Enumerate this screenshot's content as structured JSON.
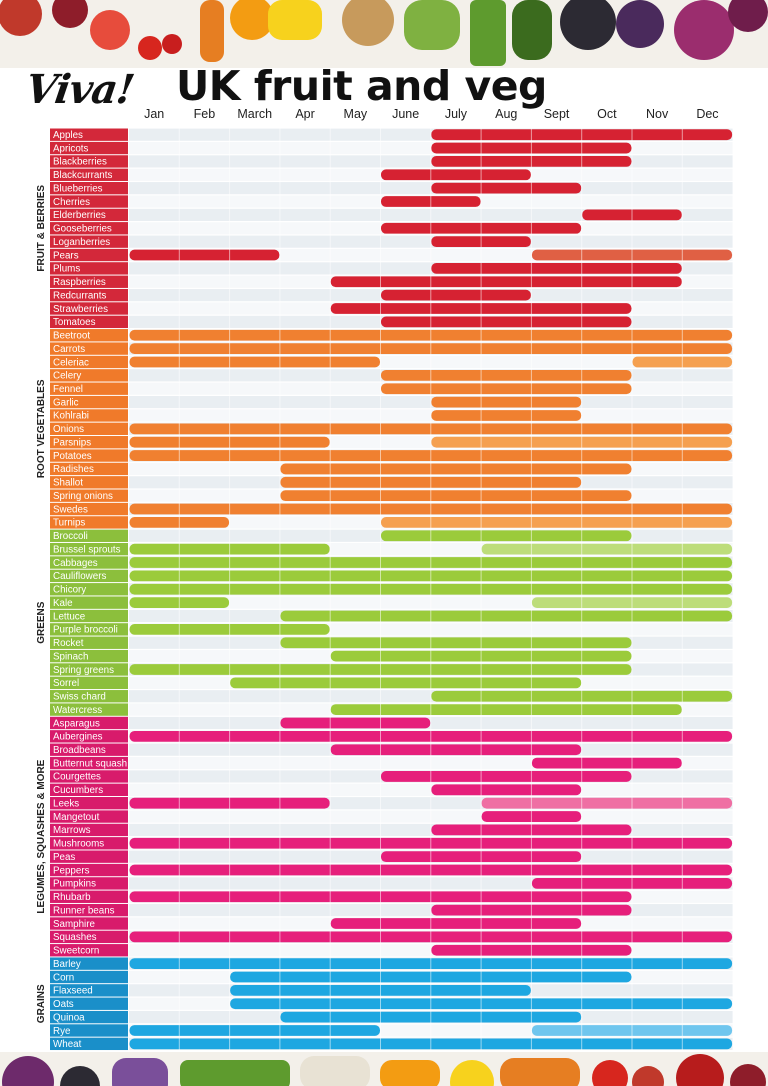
{
  "brand": {
    "logo_text": "Viva!"
  },
  "page": {
    "title": "UK fruit and veg"
  },
  "icons": {
    "top_border": "vegetable-border-image",
    "bottom_border": "vegetable-border-image"
  },
  "colors": {
    "fruit_label": "#d3283a",
    "fruit_bar": "#d62232",
    "fruit_bar_light": "#e06044",
    "root_label": "#f07a2a",
    "root_bar": "#f08030",
    "root_bar_light": "#f5a050",
    "greens_label": "#8cbf3c",
    "greens_bar": "#9bcb3b",
    "greens_bar_light": "#bddd7a",
    "legumes_label": "#d81b6b",
    "legumes_bar": "#e61f7b",
    "legumes_bar_light": "#ef6fa3",
    "grains_label": "#1a8fc9",
    "grains_bar": "#1ea7e1",
    "grains_bar_light": "#6fc6ee",
    "background_stripe": "#e9eef2"
  },
  "chart_data": {
    "type": "table",
    "title": "UK fruit and veg",
    "months": [
      "Jan",
      "Feb",
      "March",
      "Apr",
      "May",
      "June",
      "July",
      "Aug",
      "Sept",
      "Oct",
      "Nov",
      "Dec"
    ],
    "legend": "none",
    "groups": [
      {
        "name": "FRUIT & BERRIES",
        "color_key": "fruit",
        "items": [
          {
            "name": "Apples",
            "months": [
              7,
              8,
              9,
              10,
              11,
              12
            ]
          },
          {
            "name": "Apricots",
            "months": [
              7,
              8,
              9,
              10
            ]
          },
          {
            "name": "Blackberries",
            "months": [
              7,
              8,
              9,
              10
            ]
          },
          {
            "name": "Blackcurrants",
            "months": [
              6,
              7,
              8
            ]
          },
          {
            "name": "Blueberries",
            "months": [
              7,
              8,
              9
            ]
          },
          {
            "name": "Cherries",
            "months": [
              6,
              7
            ]
          },
          {
            "name": "Elderberries",
            "months": [
              10,
              11
            ]
          },
          {
            "name": "Gooseberries",
            "months": [
              6,
              7,
              8,
              9
            ]
          },
          {
            "name": "Loganberries",
            "months": [
              7,
              8
            ]
          },
          {
            "name": "Pears",
            "months": [
              1,
              2,
              3,
              9,
              10,
              11,
              12
            ]
          },
          {
            "name": "Plums",
            "months": [
              7,
              8,
              9,
              10,
              11
            ]
          },
          {
            "name": "Raspberries",
            "months": [
              5,
              6,
              7,
              8,
              9,
              10,
              11
            ]
          },
          {
            "name": "Redcurrants",
            "months": [
              6,
              7,
              8
            ]
          },
          {
            "name": "Strawberries",
            "months": [
              5,
              6,
              7,
              8,
              9,
              10
            ]
          },
          {
            "name": "Tomatoes",
            "months": [
              6,
              7,
              8,
              9,
              10
            ]
          }
        ]
      },
      {
        "name": "ROOT VEGETABLES",
        "color_key": "root",
        "items": [
          {
            "name": "Beetroot",
            "months": [
              1,
              2,
              3,
              4,
              5,
              6,
              7,
              8,
              9,
              10,
              11,
              12
            ]
          },
          {
            "name": "Carrots",
            "months": [
              1,
              2,
              3,
              4,
              5,
              6,
              7,
              8,
              9,
              10,
              11,
              12
            ]
          },
          {
            "name": "Celeriac",
            "months": [
              1,
              2,
              3,
              4,
              5,
              11,
              12
            ]
          },
          {
            "name": "Celery",
            "months": [
              6,
              7,
              8,
              9,
              10
            ]
          },
          {
            "name": "Fennel",
            "months": [
              6,
              7,
              8,
              9,
              10
            ]
          },
          {
            "name": "Garlic",
            "months": [
              7,
              8,
              9
            ]
          },
          {
            "name": "Kohlrabi",
            "months": [
              7,
              8,
              9
            ]
          },
          {
            "name": "Onions",
            "months": [
              1,
              2,
              3,
              4,
              5,
              6,
              7,
              8,
              9,
              10,
              11,
              12
            ]
          },
          {
            "name": "Parsnips",
            "months": [
              1,
              2,
              3,
              4,
              7,
              8,
              9,
              10,
              11,
              12
            ]
          },
          {
            "name": "Potatoes",
            "months": [
              1,
              2,
              3,
              4,
              5,
              6,
              7,
              8,
              9,
              10,
              11,
              12
            ]
          },
          {
            "name": "Radishes",
            "months": [
              4,
              5,
              6,
              7,
              8,
              9,
              10
            ]
          },
          {
            "name": "Shallot",
            "months": [
              4,
              5,
              6,
              7,
              8,
              9
            ]
          },
          {
            "name": "Spring onions",
            "months": [
              4,
              5,
              6,
              7,
              8,
              9,
              10
            ]
          },
          {
            "name": "Swedes",
            "months": [
              1,
              2,
              3,
              4,
              5,
              6,
              7,
              8,
              9,
              10,
              11,
              12
            ]
          },
          {
            "name": "Turnips",
            "months": [
              1,
              2,
              6,
              7,
              8,
              9,
              10,
              11,
              12
            ]
          }
        ]
      },
      {
        "name": "GREENS",
        "color_key": "greens",
        "items": [
          {
            "name": "Broccoli",
            "months": [
              6,
              7,
              8,
              9,
              10
            ]
          },
          {
            "name": "Brussel sprouts",
            "months": [
              1,
              2,
              3,
              4,
              8,
              9,
              10,
              11,
              12
            ]
          },
          {
            "name": "Cabbages",
            "months": [
              1,
              2,
              3,
              4,
              5,
              6,
              7,
              8,
              9,
              10,
              11,
              12
            ]
          },
          {
            "name": "Cauliflowers",
            "months": [
              1,
              2,
              3,
              4,
              5,
              6,
              7,
              8,
              9,
              10,
              11,
              12
            ]
          },
          {
            "name": "Chicory",
            "months": [
              1,
              2,
              3,
              4,
              5,
              6,
              7,
              8,
              9,
              10,
              11,
              12
            ]
          },
          {
            "name": "Kale",
            "months": [
              1,
              2,
              9,
              10,
              11,
              12
            ]
          },
          {
            "name": "Lettuce",
            "months": [
              4,
              5,
              6,
              7,
              8,
              9,
              10,
              11,
              12
            ]
          },
          {
            "name": "Purple broccoli",
            "months": [
              1,
              2,
              3,
              4
            ]
          },
          {
            "name": "Rocket",
            "months": [
              4,
              5,
              6,
              7,
              8,
              9,
              10
            ]
          },
          {
            "name": "Spinach",
            "months": [
              5,
              6,
              7,
              8,
              9,
              10
            ]
          },
          {
            "name": "Spring greens",
            "months": [
              1,
              2,
              3,
              4,
              5,
              6,
              7,
              8,
              9,
              10
            ]
          },
          {
            "name": "Sorrel",
            "months": [
              3,
              4,
              5,
              6,
              7,
              8,
              9
            ]
          },
          {
            "name": "Swiss chard",
            "months": [
              7,
              8,
              9,
              10,
              11,
              12
            ]
          },
          {
            "name": "Watercress",
            "months": [
              5,
              6,
              7,
              8,
              9,
              10,
              11
            ]
          }
        ]
      },
      {
        "name": "LEGUMES, SQUASHES & MORE",
        "color_key": "legumes",
        "items": [
          {
            "name": "Asparagus",
            "months": [
              4,
              5,
              6
            ]
          },
          {
            "name": "Aubergines",
            "months": [
              1,
              2,
              3,
              4,
              5,
              6,
              7,
              8,
              9,
              10,
              11,
              12
            ]
          },
          {
            "name": "Broadbeans",
            "months": [
              5,
              6,
              7,
              8,
              9
            ]
          },
          {
            "name": "Butternut squash",
            "months": [
              9,
              10,
              11
            ]
          },
          {
            "name": "Courgettes",
            "months": [
              6,
              7,
              8,
              9,
              10
            ]
          },
          {
            "name": "Cucumbers",
            "months": [
              7,
              8,
              9
            ]
          },
          {
            "name": "Leeks",
            "months": [
              1,
              2,
              3,
              4,
              8,
              9,
              10,
              11,
              12
            ]
          },
          {
            "name": "Mangetout",
            "months": [
              8,
              9
            ]
          },
          {
            "name": "Marrows",
            "months": [
              7,
              8,
              9,
              10
            ]
          },
          {
            "name": "Mushrooms",
            "months": [
              1,
              2,
              3,
              4,
              5,
              6,
              7,
              8,
              9,
              10,
              11,
              12
            ]
          },
          {
            "name": "Peas",
            "months": [
              6,
              7,
              8,
              9
            ]
          },
          {
            "name": "Peppers",
            "months": [
              1,
              2,
              3,
              4,
              5,
              6,
              7,
              8,
              9,
              10,
              11,
              12
            ]
          },
          {
            "name": "Pumpkins",
            "months": [
              9,
              10,
              11,
              12
            ]
          },
          {
            "name": "Rhubarb",
            "months": [
              1,
              2,
              3,
              4,
              5,
              6,
              7,
              8,
              9,
              10
            ]
          },
          {
            "name": "Runner beans",
            "months": [
              7,
              8,
              9,
              10
            ]
          },
          {
            "name": "Samphire",
            "months": [
              5,
              6,
              7,
              8,
              9
            ]
          },
          {
            "name": "Squashes",
            "months": [
              1,
              2,
              3,
              4,
              5,
              6,
              7,
              8,
              9,
              10,
              11,
              12
            ]
          },
          {
            "name": "Sweetcorn",
            "months": [
              7,
              8,
              9,
              10
            ]
          }
        ]
      },
      {
        "name": "GRAINS",
        "color_key": "grains",
        "items": [
          {
            "name": "Barley",
            "months": [
              1,
              2,
              3,
              4,
              5,
              6,
              7,
              8,
              9,
              10,
              11,
              12
            ]
          },
          {
            "name": "Corn",
            "months": [
              3,
              4,
              5,
              6,
              7,
              8,
              9,
              10
            ]
          },
          {
            "name": "Flaxseed",
            "months": [
              3,
              4,
              5,
              6,
              7,
              8
            ]
          },
          {
            "name": "Oats",
            "months": [
              3,
              4,
              5,
              6,
              7,
              8,
              9,
              10,
              11,
              12
            ]
          },
          {
            "name": "Quinoa",
            "months": [
              4,
              5,
              6,
              7,
              8,
              9
            ]
          },
          {
            "name": "Rye",
            "months": [
              1,
              2,
              3,
              4,
              5,
              9,
              10,
              11,
              12
            ]
          },
          {
            "name": "Wheat",
            "months": [
              1,
              2,
              3,
              4,
              5,
              6,
              7,
              8,
              9,
              10,
              11,
              12
            ]
          }
        ]
      }
    ]
  }
}
